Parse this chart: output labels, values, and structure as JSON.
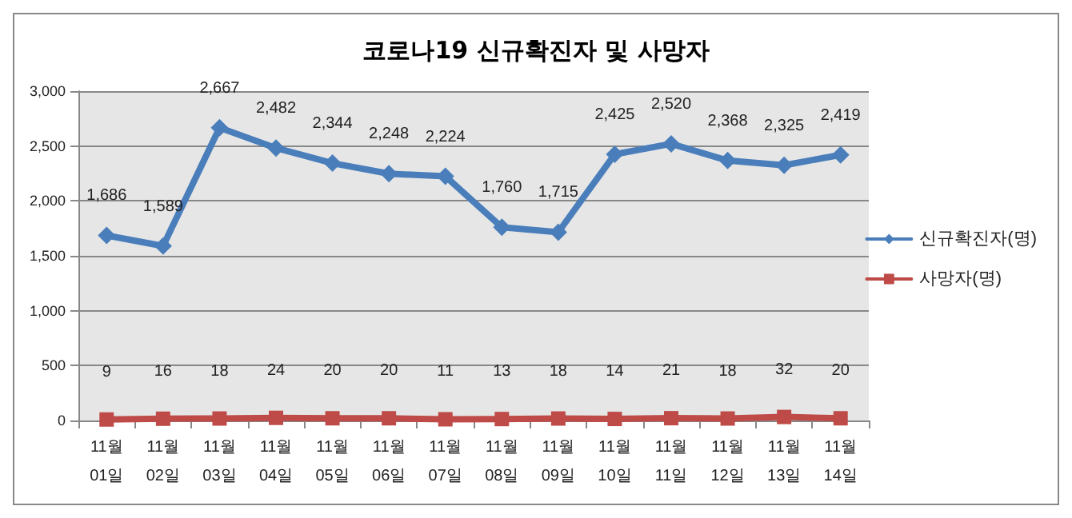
{
  "chart_data": {
    "type": "line",
    "title": "코로나19 신규확진자 및 사망자",
    "categories": [
      "11월\n01일",
      "11월\n02일",
      "11월\n03일",
      "11월\n04일",
      "11월\n05일",
      "11월\n06일",
      "11월\n07일",
      "11월\n08일",
      "11월\n09일",
      "11월\n10일",
      "11월\n11일",
      "11월\n12일",
      "11월\n13일",
      "11월\n14일"
    ],
    "series": [
      {
        "name": "신규확진자(명)",
        "color": "#4a7ebb",
        "marker": "diamond",
        "values": [
          1686,
          1589,
          2667,
          2482,
          2344,
          2248,
          2224,
          1760,
          1715,
          2425,
          2520,
          2368,
          2325,
          2419
        ],
        "value_labels": [
          "1,686",
          "1,589",
          "2,667",
          "2,482",
          "2,344",
          "2,248",
          "2,224",
          "1,760",
          "1,715",
          "2,425",
          "2,520",
          "2,368",
          "2,325",
          "2,419"
        ]
      },
      {
        "name": "사망자(명)",
        "color": "#be4b48",
        "marker": "square",
        "values": [
          9,
          16,
          18,
          24,
          20,
          20,
          11,
          13,
          18,
          14,
          21,
          18,
          32,
          20
        ],
        "value_labels": [
          "9",
          "16",
          "18",
          "24",
          "20",
          "20",
          "11",
          "13",
          "18",
          "14",
          "21",
          "18",
          "32",
          "20"
        ]
      }
    ],
    "ylim": [
      0,
      3000
    ],
    "yticks": [
      0,
      500,
      {
        "value": 1000,
        "label": "1,000"
      },
      {
        "value": 1500,
        "label": "1,500"
      },
      {
        "value": 2000,
        "label": "2,000"
      },
      {
        "value": 2500,
        "label": "2,500"
      },
      {
        "value": 3000,
        "label": "3,000"
      }
    ],
    "grid": "y",
    "legend": "right",
    "line_style": "solid"
  }
}
